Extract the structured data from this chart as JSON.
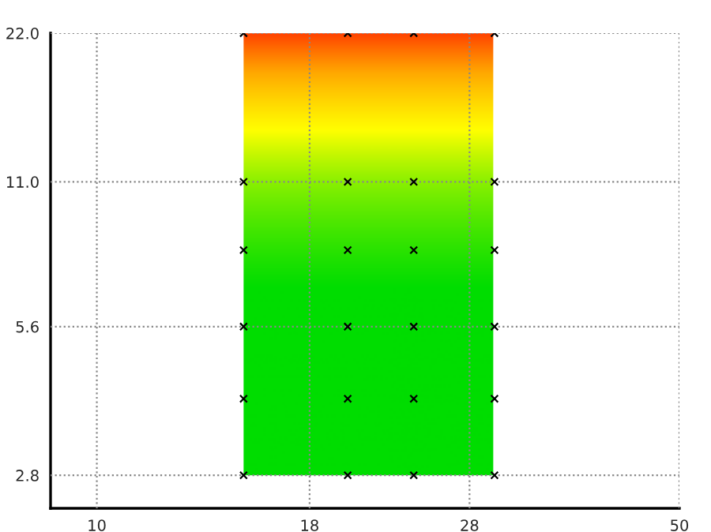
{
  "chart_data": {
    "type": "scatter",
    "log": "xy",
    "marker": "cross",
    "grid": true,
    "x": [
      15,
      20,
      24,
      30,
      15,
      20,
      24,
      30,
      15,
      20,
      24,
      30,
      15,
      20,
      24,
      30,
      15,
      20,
      24,
      30,
      15,
      20,
      24,
      30
    ],
    "series": [
      {
        "color": "#000000",
        "values": [
          22,
          22,
          22,
          22,
          11,
          11,
          11,
          11,
          8,
          8,
          8,
          8,
          5.6,
          5.6,
          5.6,
          5.6,
          4,
          4,
          4,
          4,
          2.8,
          2.8,
          2.8,
          2.8
        ]
      }
    ],
    "xlim": [
      8.8,
      50
    ],
    "xticks": [
      10,
      18,
      28,
      50
    ],
    "ylim": [
      2.4,
      22
    ],
    "yticks": [
      {
        "value": 2.8,
        "label": "2.8"
      },
      {
        "value": 5.6,
        "label": "5.6"
      },
      {
        "value": 11,
        "label": "11.0"
      },
      {
        "value": 22,
        "label": "22.0"
      }
    ]
  }
}
